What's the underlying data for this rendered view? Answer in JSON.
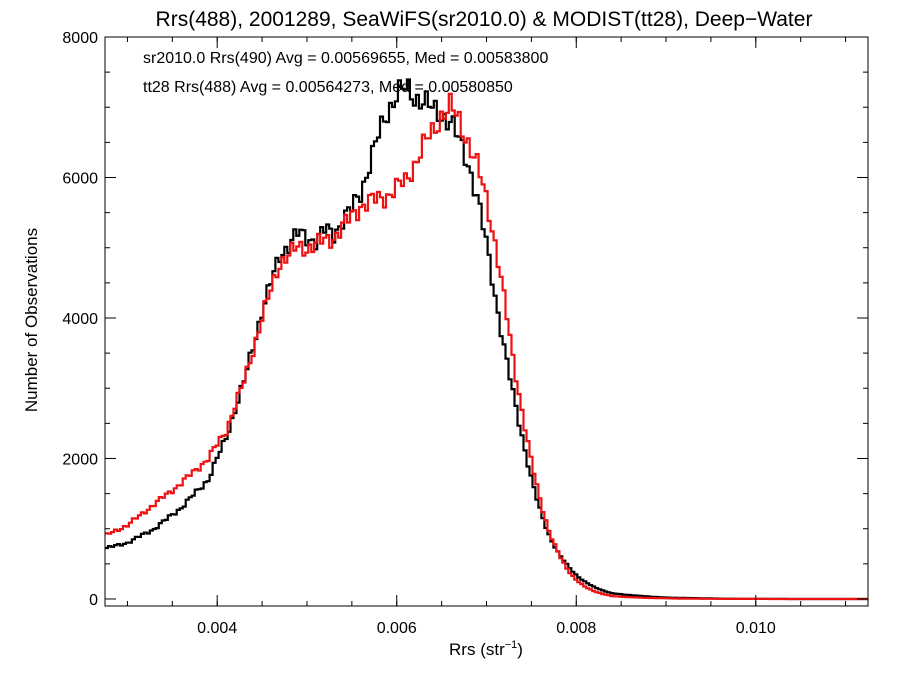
{
  "chart_data": {
    "type": "line",
    "title": "Rrs(488), 2001289, SeaWiFS(sr2010.0) & MODIST(tt28), Deep−Water",
    "xlabel_main": "Rrs (str",
    "xlabel_sup": "−1",
    "xlabel_close": ")",
    "ylabel": "Number of Observations",
    "xlim": [
      0.00275,
      0.01125
    ],
    "ylim": [
      -100,
      8000
    ],
    "xticks": [
      0.004,
      0.006,
      0.008,
      0.01
    ],
    "xtick_labels": [
      "0.004",
      "0.006",
      "0.008",
      "0.010"
    ],
    "yticks": [
      0,
      2000,
      4000,
      6000,
      8000
    ],
    "ytick_labels": [
      "0",
      "2000",
      "4000",
      "6000",
      "8000"
    ],
    "legend_position": "top-left",
    "annotations": [
      {
        "text": "sr2010.0 Rrs(490) Avg = 0.00569655, Med = 0.00583800",
        "color": "#000000"
      },
      {
        "text": "tt28 Rrs(488) Avg = 0.00564273, Med = 0.00580850",
        "color": "#ee1111"
      }
    ],
    "series": [
      {
        "color": "#000000",
        "style": "step",
        "x": [
          0.00275,
          0.003,
          0.0033,
          0.0036,
          0.0039,
          0.0041,
          0.0043,
          0.0045,
          0.0047,
          0.0049,
          0.005,
          0.0051,
          0.0052,
          0.0053,
          0.0054,
          0.0055,
          0.0056,
          0.0057,
          0.0058,
          0.0059,
          0.006,
          0.0061,
          0.0062,
          0.0063,
          0.0064,
          0.0065,
          0.0066,
          0.0067,
          0.0068,
          0.0069,
          0.007,
          0.0071,
          0.0072,
          0.0073,
          0.0074,
          0.0075,
          0.0076,
          0.0077,
          0.0078,
          0.0079,
          0.008,
          0.0081,
          0.0082,
          0.0083,
          0.0084,
          0.0086,
          0.0088,
          0.009,
          0.0092,
          0.0094,
          0.0096,
          0.0098,
          0.01,
          0.0102,
          0.0104,
          0.0106,
          0.0108,
          0.011,
          0.01125
        ],
        "y": [
          720,
          800,
          1000,
          1300,
          1700,
          2300,
          3100,
          4100,
          4900,
          5200,
          5150,
          5100,
          5250,
          5200,
          5400,
          5550,
          5800,
          6200,
          6600,
          6950,
          7200,
          7250,
          7150,
          7100,
          6950,
          6900,
          6800,
          6500,
          6200,
          5700,
          5050,
          4300,
          3550,
          2900,
          2300,
          1700,
          1250,
          900,
          650,
          480,
          340,
          240,
          170,
          120,
          80,
          55,
          35,
          20,
          15,
          10,
          5,
          3,
          2,
          1,
          0,
          0,
          0,
          0,
          0
        ]
      },
      {
        "color": "#ee1111",
        "style": "step",
        "x": [
          0.00275,
          0.003,
          0.0033,
          0.0036,
          0.0039,
          0.0041,
          0.0043,
          0.0045,
          0.0047,
          0.0049,
          0.005,
          0.0051,
          0.0052,
          0.0053,
          0.0054,
          0.0055,
          0.0056,
          0.0057,
          0.0058,
          0.0059,
          0.006,
          0.0061,
          0.0062,
          0.0063,
          0.0064,
          0.0065,
          0.0066,
          0.0067,
          0.0068,
          0.0069,
          0.007,
          0.0071,
          0.0072,
          0.0073,
          0.0074,
          0.0075,
          0.0076,
          0.0077,
          0.0078,
          0.0079,
          0.008,
          0.0081,
          0.0082,
          0.0083,
          0.0084,
          0.0086,
          0.0088,
          0.009,
          0.0092,
          0.0094,
          0.0096,
          0.0098,
          0.01,
          0.0102,
          0.0104,
          0.0106,
          0.0108,
          0.011,
          0.01125
        ],
        "y": [
          900,
          1050,
          1350,
          1650,
          2000,
          2400,
          3100,
          4000,
          4800,
          5000,
          5000,
          5050,
          5100,
          5150,
          5300,
          5450,
          5600,
          5650,
          5700,
          5750,
          5850,
          5950,
          6200,
          6450,
          6650,
          6900,
          7000,
          6800,
          6500,
          6150,
          5700,
          5050,
          4250,
          3400,
          2650,
          1950,
          1400,
          950,
          650,
          420,
          270,
          170,
          110,
          70,
          40,
          25,
          15,
          10,
          5,
          3,
          2,
          1,
          1,
          0,
          0,
          0,
          0,
          0,
          0
        ]
      }
    ]
  }
}
